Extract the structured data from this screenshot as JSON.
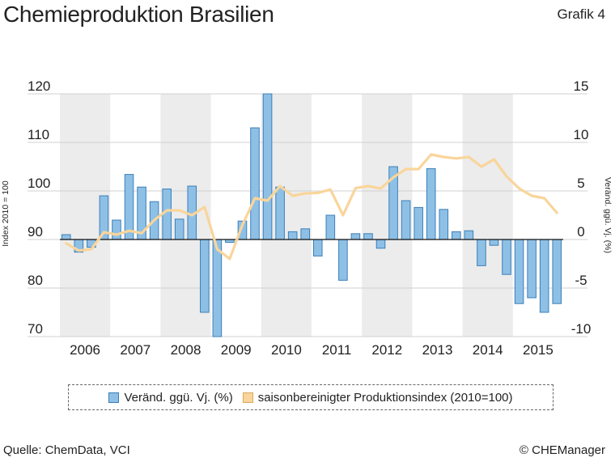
{
  "header": {
    "title": "Chemieproduktion Brasilien",
    "grafik": "Grafik 4"
  },
  "footer": {
    "source": "Quelle: ChemData, VCI",
    "copyright": "© CHEManager"
  },
  "colors": {
    "bar_fill": "#8ec0e6",
    "bar_stroke": "#3c7fb8",
    "line": "#f9d59b",
    "band": "#ececec",
    "grid": "#d0d0d0"
  },
  "legend": {
    "bars": "Veränd. ggü. Vj. (%)",
    "line": "saisonbereinigter Produktionsindex (2010=100)"
  },
  "chart_data": {
    "type": "bar+line",
    "title": "Chemieproduktion Brasilien",
    "left_axis": {
      "label": "Index 2010 = 100",
      "range": [
        70,
        120
      ],
      "ticks": [
        "120",
        "110",
        "100",
        "90",
        "80",
        "70"
      ],
      "tick_values": [
        120,
        110,
        100,
        90,
        80,
        70
      ]
    },
    "right_axis": {
      "label": "Veränd. ggü. Vj. (%)",
      "range": [
        -10,
        15
      ],
      "ticks": [
        "15",
        "10",
        "5",
        "0",
        "-5",
        "-10"
      ],
      "tick_values": [
        15,
        10,
        5,
        0,
        -5,
        -10
      ]
    },
    "years": [
      "2006",
      "2007",
      "2008",
      "2009",
      "2010",
      "2011",
      "2012",
      "2013",
      "2014",
      "2015"
    ],
    "categories": [
      "2006 Q1",
      "2006 Q2",
      "2006 Q3",
      "2006 Q4",
      "2007 Q1",
      "2007 Q2",
      "2007 Q3",
      "2007 Q4",
      "2008 Q1",
      "2008 Q2",
      "2008 Q3",
      "2008 Q4",
      "2009 Q1",
      "2009 Q2",
      "2009 Q3",
      "2009 Q4",
      "2010 Q1",
      "2010 Q2",
      "2010 Q3",
      "2010 Q4",
      "2011 Q1",
      "2011 Q2",
      "2011 Q3",
      "2011 Q4",
      "2012 Q1",
      "2012 Q2",
      "2012 Q3",
      "2012 Q4",
      "2013 Q1",
      "2013 Q2",
      "2013 Q3",
      "2013 Q4",
      "2014 Q1",
      "2014 Q2",
      "2014 Q3",
      "2014 Q4",
      "2015 Q1",
      "2015 Q2",
      "2015 Q3",
      "2015 Q4"
    ],
    "series": [
      {
        "name": "Veränd. ggü. Vj. (%)",
        "axis": "right",
        "type": "bar",
        "values": [
          0.5,
          -1.3,
          -0.8,
          4.5,
          2.0,
          6.7,
          5.4,
          3.9,
          5.2,
          2.1,
          5.5,
          -7.5,
          -10.0,
          -0.3,
          1.9,
          11.5,
          15.0,
          5.4,
          0.8,
          1.1,
          -1.7,
          2.5,
          -4.2,
          0.6,
          0.6,
          -0.9,
          7.5,
          4.0,
          3.3,
          7.3,
          3.1,
          0.8,
          0.9,
          -2.7,
          -0.6,
          -3.6,
          -6.6,
          -6.0,
          -7.5,
          -6.6
        ]
      },
      {
        "name": "saisonbereinigter Produktionsindex (2010=100)",
        "axis": "left",
        "type": "line",
        "values": [
          89.2,
          87.7,
          88.0,
          91.5,
          91.0,
          91.8,
          91.3,
          94.0,
          96.0,
          96.0,
          95.0,
          96.7,
          88.0,
          86.0,
          93.0,
          98.5,
          98.0,
          101.0,
          99.0,
          99.5,
          99.6,
          100.3,
          95.0,
          100.6,
          101.0,
          100.5,
          102.8,
          104.5,
          104.5,
          107.5,
          107.0,
          106.7,
          107.0,
          105.0,
          106.5,
          103.0,
          100.5,
          99.0,
          98.5,
          95.5
        ]
      }
    ],
    "grid": true
  }
}
